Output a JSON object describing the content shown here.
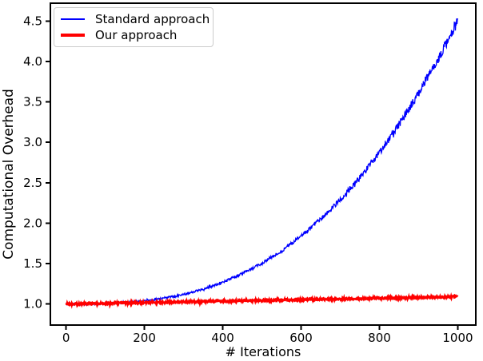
{
  "figure": {
    "background": "#ffffff"
  },
  "chart_data": {
    "type": "line",
    "title": "",
    "xlabel": "# Iterations",
    "ylabel": "Computational Overhead",
    "xlim": [
      -40,
      1046
    ],
    "ylim": [
      0.74,
      4.72
    ],
    "xticks": [
      0,
      200,
      400,
      600,
      800,
      1000
    ],
    "xtick_labels": [
      "0",
      "200",
      "400",
      "600",
      "800",
      "1000"
    ],
    "yticks": [
      1.0,
      1.5,
      2.0,
      2.5,
      3.0,
      3.5,
      4.0,
      4.5
    ],
    "ytick_labels": [
      "1.0",
      "1.5",
      "2.0",
      "2.5",
      "3.0",
      "3.5",
      "4.0",
      "4.5"
    ],
    "grid": false,
    "axis_color": "#000000",
    "text_color": "#000000",
    "legend": {
      "position": "upper-left",
      "border_color": "#cccccc"
    },
    "x_samples": [
      0,
      50,
      100,
      150,
      200,
      250,
      300,
      350,
      400,
      450,
      500,
      550,
      600,
      650,
      700,
      750,
      800,
      850,
      900,
      950,
      1000
    ],
    "series": [
      {
        "name": "Standard approach",
        "color": "#0000ff",
        "line_width": 1.3,
        "noise_base": 0.01,
        "noise_growth": 0.016,
        "values": [
          1.0,
          1.001,
          1.006,
          1.017,
          1.039,
          1.072,
          1.12,
          1.185,
          1.27,
          1.376,
          1.503,
          1.656,
          1.838,
          2.048,
          2.289,
          2.564,
          2.874,
          3.22,
          3.606,
          4.032,
          4.5
        ]
      },
      {
        "name": "Our approach",
        "color": "#ff0000",
        "line_width": 2.6,
        "noise_base": 0.013,
        "noise_growth": 0.0,
        "values": [
          1.0,
          1.004,
          1.009,
          1.013,
          1.018,
          1.022,
          1.027,
          1.031,
          1.036,
          1.04,
          1.045,
          1.049,
          1.054,
          1.058,
          1.063,
          1.067,
          1.072,
          1.076,
          1.081,
          1.085,
          1.09
        ]
      }
    ]
  }
}
